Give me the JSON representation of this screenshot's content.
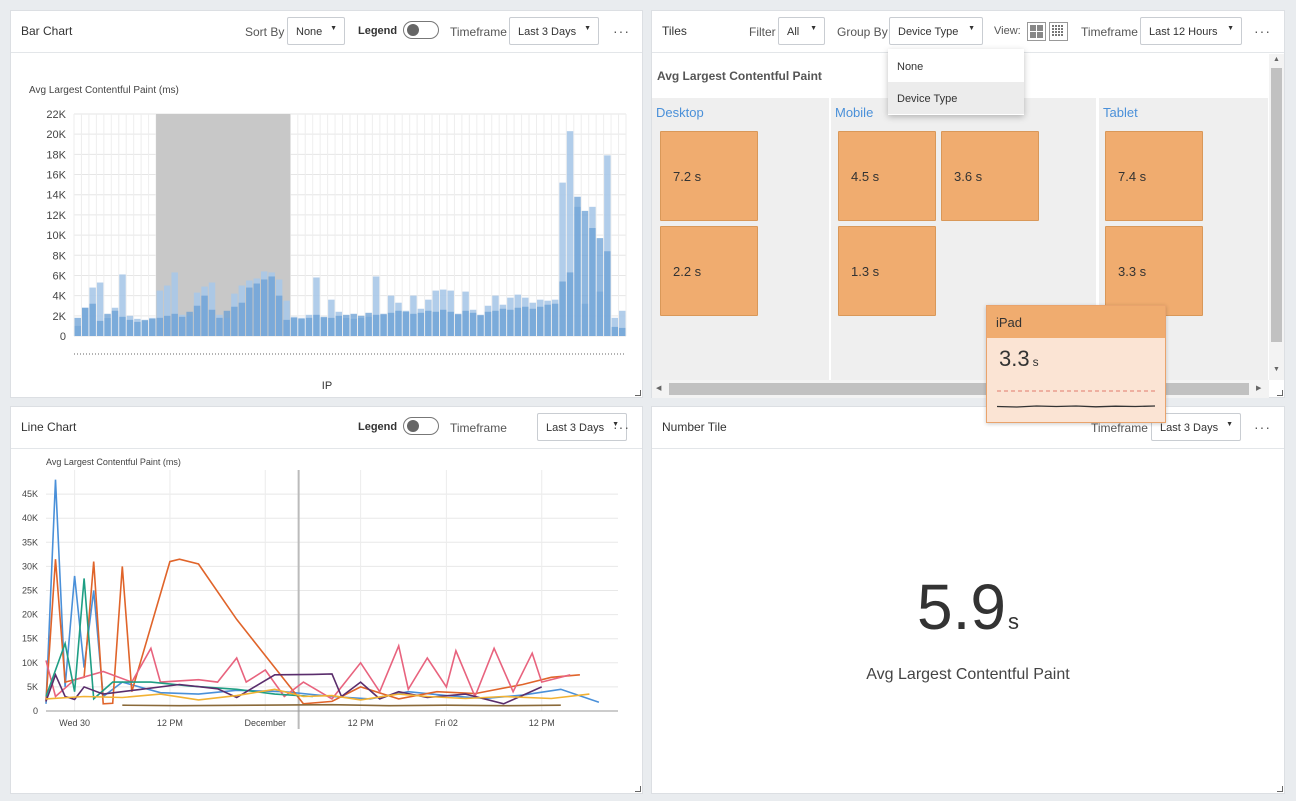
{
  "bar_panel": {
    "title": "Bar Chart",
    "sort_label": "Sort By",
    "sort_value": "None",
    "legend_label": "Legend",
    "timeframe_label": "Timeframe",
    "timeframe_value": "Last 3 Days",
    "more": "···"
  },
  "tiles_panel": {
    "title": "Tiles",
    "filter_label": "Filter",
    "filter_value": "All",
    "group_label": "Group By",
    "group_value": "Device Type",
    "view_label": "View:",
    "timeframe_label": "Timeframe",
    "timeframe_value": "Last 12 Hours",
    "more": "···",
    "heading": "Avg Largest Contentful Paint",
    "groups": [
      {
        "label": "Desktop",
        "tiles": [
          "7.2 s",
          "2.2 s"
        ]
      },
      {
        "label": "Mobile",
        "tiles": [
          "4.5 s",
          "3.6 s",
          "1.3 s"
        ]
      },
      {
        "label": "Tablet",
        "tiles": [
          "7.4 s",
          "3.3 s"
        ]
      }
    ],
    "dropdown_options": [
      "None",
      "Device Type"
    ],
    "tooltip": {
      "title": "iPad",
      "value": "3.3",
      "unit": "s",
      "sparkline": [
        0.55,
        0.6,
        0.5,
        0.55,
        0.5,
        0.58,
        0.52,
        0.55,
        0.5
      ]
    }
  },
  "line_panel": {
    "title": "Line Chart",
    "legend_label": "Legend",
    "timeframe_label": "Timeframe",
    "timeframe_value": "Last 3 Days",
    "more": "···"
  },
  "number_panel": {
    "title": "Number Tile",
    "timeframe_label": "Timeframe",
    "timeframe_value": "Last 3 Days",
    "more": "···",
    "value": "5.9",
    "unit": "s",
    "caption": "Avg Largest Contentful Paint"
  },
  "chart_data": [
    {
      "type": "bar",
      "title": "",
      "ylabel": "Avg Largest Contentful Paint (ms)",
      "xlabel": "IP",
      "ylim": [
        0,
        22000
      ],
      "yticks": [
        "0",
        "2K",
        "4K",
        "6K",
        "8K",
        "10K",
        "12K",
        "14K",
        "16K",
        "18K",
        "20K",
        "22K"
      ],
      "highlight_range": [
        11,
        29
      ],
      "values": [
        1000,
        2800,
        4800,
        5300,
        1800,
        2800,
        6100,
        2000,
        1700,
        1500,
        1800,
        4500,
        5000,
        6300,
        2100,
        2000,
        4300,
        4900,
        5300,
        2100,
        1800,
        4200,
        5000,
        5500,
        5700,
        6400,
        6300,
        5600,
        3500,
        1900,
        1800,
        2100,
        5800,
        1800,
        3600,
        2400,
        1800,
        1700,
        1800,
        1900,
        5900,
        2100,
        4000,
        3300,
        2500,
        4000,
        2700,
        3600,
        4500,
        4600,
        4500,
        2100,
        4400,
        2600,
        2000,
        3000,
        4000,
        3100,
        3800,
        4100,
        3800,
        3300,
        3600,
        3500,
        3600,
        15200,
        20300,
        12800,
        3200,
        12800,
        4400,
        17900,
        1800,
        2500
      ],
      "overlay": [
        1800,
        2800,
        3200,
        1500,
        2200,
        2500,
        1900,
        1600,
        1400,
        1600,
        1700,
        1800,
        2000,
        2200,
        1900,
        2400,
        3000,
        4000,
        2600,
        1800,
        2500,
        2900,
        3300,
        4800,
        5200,
        5600,
        5900,
        4000,
        1600,
        1800,
        1700,
        1800,
        2100,
        1900,
        1800,
        2000,
        2100,
        2200,
        2000,
        2300,
        2100,
        2200,
        2300,
        2500,
        2400,
        2200,
        2300,
        2500,
        2400,
        2600,
        2400,
        2200,
        2500,
        2300,
        2100,
        2400,
        2500,
        2700,
        2600,
        2800,
        2900,
        2700,
        2900,
        3100,
        3200,
        5400,
        6300,
        13800,
        12400,
        10700,
        9700,
        8400,
        900,
        800
      ]
    },
    {
      "type": "line",
      "title": "",
      "ylabel": "Avg Largest Contentful Paint (ms)",
      "xlabel": "",
      "ylim": [
        0,
        50000
      ],
      "yticks": [
        "0",
        "5K",
        "10K",
        "15K",
        "20K",
        "25K",
        "30K",
        "35K",
        "40K",
        "45K"
      ],
      "xticks": [
        "Wed 30",
        "12 PM",
        "December",
        "12 PM",
        "Fri 02",
        "12 PM"
      ],
      "x_range": [
        0,
        60
      ],
      "tick_positions": [
        3,
        13,
        23,
        33,
        42,
        52
      ],
      "series": [
        {
          "color": "#4a90d9",
          "points": [
            [
              0,
              1500
            ],
            [
              1,
              48000
            ],
            [
              2,
              5000
            ],
            [
              3,
              28000
            ],
            [
              4,
              9000
            ],
            [
              5,
              25000
            ],
            [
              6,
              3000
            ],
            [
              8,
              6000
            ],
            [
              12,
              3800
            ],
            [
              16,
              3500
            ],
            [
              20,
              4300
            ],
            [
              25,
              4000
            ],
            [
              30,
              3000
            ],
            [
              34,
              2500
            ],
            [
              38,
              4000
            ],
            [
              42,
              3200
            ],
            [
              46,
              2600
            ],
            [
              50,
              3300
            ],
            [
              54,
              4500
            ],
            [
              58,
              1800
            ]
          ]
        },
        {
          "color": "#e0642a",
          "points": [
            [
              0,
              2000
            ],
            [
              1,
              31500
            ],
            [
              2,
              6000
            ],
            [
              4,
              7000
            ],
            [
              5,
              31000
            ],
            [
              6,
              1500
            ],
            [
              7,
              1600
            ],
            [
              8,
              30000
            ],
            [
              9,
              4000
            ],
            [
              13,
              31000
            ],
            [
              14,
              31500
            ],
            [
              16,
              30500
            ],
            [
              20,
              19000
            ],
            [
              24,
              9000
            ],
            [
              27,
              1500
            ],
            [
              30,
              2000
            ],
            [
              33,
              5000
            ],
            [
              37,
              2500
            ],
            [
              41,
              4000
            ],
            [
              45,
              3600
            ],
            [
              50,
              5500
            ],
            [
              53,
              7000
            ],
            [
              56,
              7500
            ]
          ]
        },
        {
          "color": "#e8637e",
          "points": [
            [
              0,
              10500
            ],
            [
              1,
              3000
            ],
            [
              3,
              6500
            ],
            [
              6,
              8200
            ],
            [
              9,
              6000
            ],
            [
              11,
              13000
            ],
            [
              12,
              6000
            ],
            [
              16,
              6500
            ],
            [
              18,
              6000
            ],
            [
              20,
              11000
            ],
            [
              21,
              6000
            ],
            [
              23,
              8500
            ],
            [
              25,
              3000
            ],
            [
              27,
              6000
            ],
            [
              30,
              2500
            ],
            [
              33,
              10000
            ],
            [
              35,
              4000
            ],
            [
              37,
              13500
            ],
            [
              38,
              4500
            ],
            [
              40,
              11000
            ],
            [
              42,
              5000
            ],
            [
              43,
              12500
            ],
            [
              45,
              3000
            ],
            [
              47,
              13000
            ],
            [
              49,
              4000
            ],
            [
              51,
              12000
            ],
            [
              52,
              6000
            ],
            [
              55,
              7500
            ]
          ]
        },
        {
          "color": "#1e9e84",
          "points": [
            [
              0,
              3000
            ],
            [
              2,
              14000
            ],
            [
              3,
              4000
            ],
            [
              4,
              27500
            ],
            [
              5,
              2500
            ],
            [
              7,
              6000
            ],
            [
              11,
              6000
            ],
            [
              15,
              5200
            ],
            [
              20,
              4500
            ],
            [
              24,
              3500
            ],
            [
              28,
              3000
            ]
          ]
        },
        {
          "color": "#5a2d6c",
          "points": [
            [
              0,
              2000
            ],
            [
              1,
              7500
            ],
            [
              2,
              3000
            ],
            [
              3,
              2400
            ],
            [
              4,
              5000
            ],
            [
              6,
              3500
            ],
            [
              10,
              4500
            ],
            [
              14,
              5500
            ],
            [
              18,
              4600
            ],
            [
              20,
              2800
            ],
            [
              24,
              7500
            ],
            [
              28,
              7600
            ],
            [
              30,
              7700
            ],
            [
              31,
              3000
            ],
            [
              33,
              6000
            ],
            [
              35,
              2500
            ],
            [
              37,
              4000
            ],
            [
              40,
              2800
            ],
            [
              44,
              3500
            ],
            [
              48,
              1500
            ],
            [
              52,
              5000
            ]
          ]
        },
        {
          "color": "#f2b233",
          "points": [
            [
              0,
              2500
            ],
            [
              4,
              3000
            ],
            [
              8,
              2800
            ],
            [
              12,
              3500
            ],
            [
              16,
              2300
            ],
            [
              20,
              3200
            ],
            [
              24,
              4500
            ],
            [
              27,
              3000
            ],
            [
              30,
              3200
            ],
            [
              33,
              2300
            ],
            [
              37,
              3500
            ],
            [
              40,
              3000
            ],
            [
              44,
              2600
            ],
            [
              48,
              3000
            ],
            [
              53,
              2600
            ],
            [
              57,
              3500
            ]
          ]
        },
        {
          "color": "#8a6a3a",
          "points": [
            [
              8,
              1200
            ],
            [
              14,
              1100
            ],
            [
              22,
              1200
            ],
            [
              30,
              1300
            ],
            [
              36,
              1100
            ],
            [
              42,
              1200
            ],
            [
              48,
              1100
            ],
            [
              54,
              1200
            ]
          ]
        }
      ]
    }
  ]
}
